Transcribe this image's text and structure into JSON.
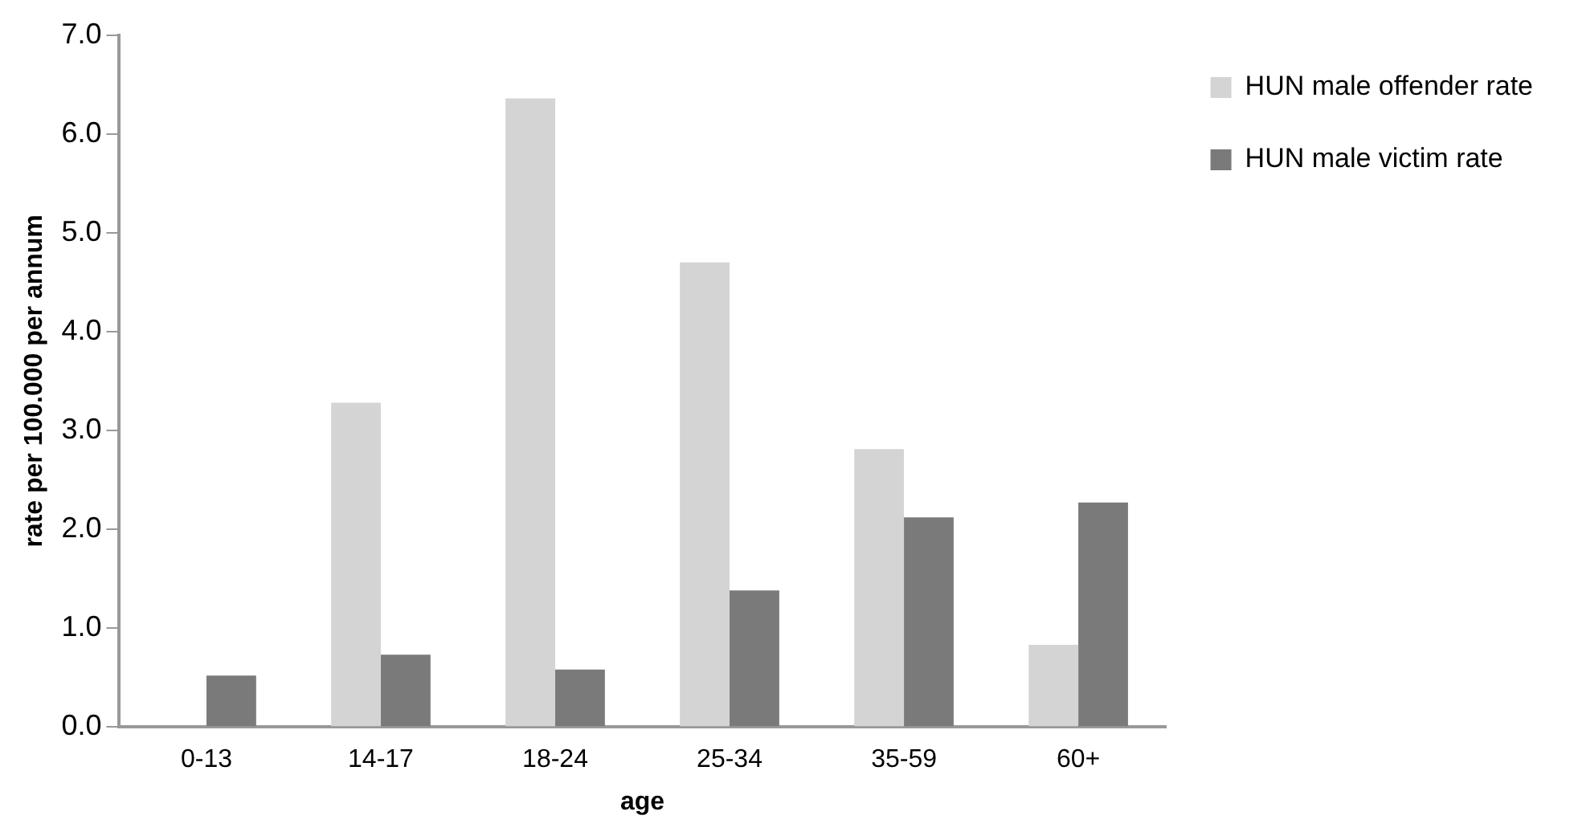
{
  "chart_data": {
    "type": "bar",
    "xlabel": "age",
    "ylabel": "rate per 100.000 per annum",
    "categories": [
      "0-13",
      "14-17",
      "18-24",
      "25-34",
      "35-59",
      "60+"
    ],
    "series": [
      {
        "name": "HUN male offender rate",
        "color": "#d4d4d4",
        "values": [
          null,
          3.28,
          6.36,
          4.7,
          2.81,
          0.83
        ]
      },
      {
        "name": "HUN male victim rate",
        "color": "#7a7a7a",
        "values": [
          0.52,
          0.73,
          0.58,
          1.38,
          2.12,
          2.27
        ]
      }
    ],
    "ylim": [
      0,
      7
    ],
    "yticks": [
      {
        "value": 0,
        "label": "0.0"
      },
      {
        "value": 1,
        "label": "1.0"
      },
      {
        "value": 2,
        "label": "2.0"
      },
      {
        "value": 3,
        "label": "3.0"
      },
      {
        "value": 4,
        "label": "4.0"
      },
      {
        "value": 5,
        "label": "5.0"
      },
      {
        "value": 6,
        "label": "6.0"
      },
      {
        "value": 7,
        "label": "7.0"
      }
    ],
    "grid": false,
    "legend": "top right"
  }
}
